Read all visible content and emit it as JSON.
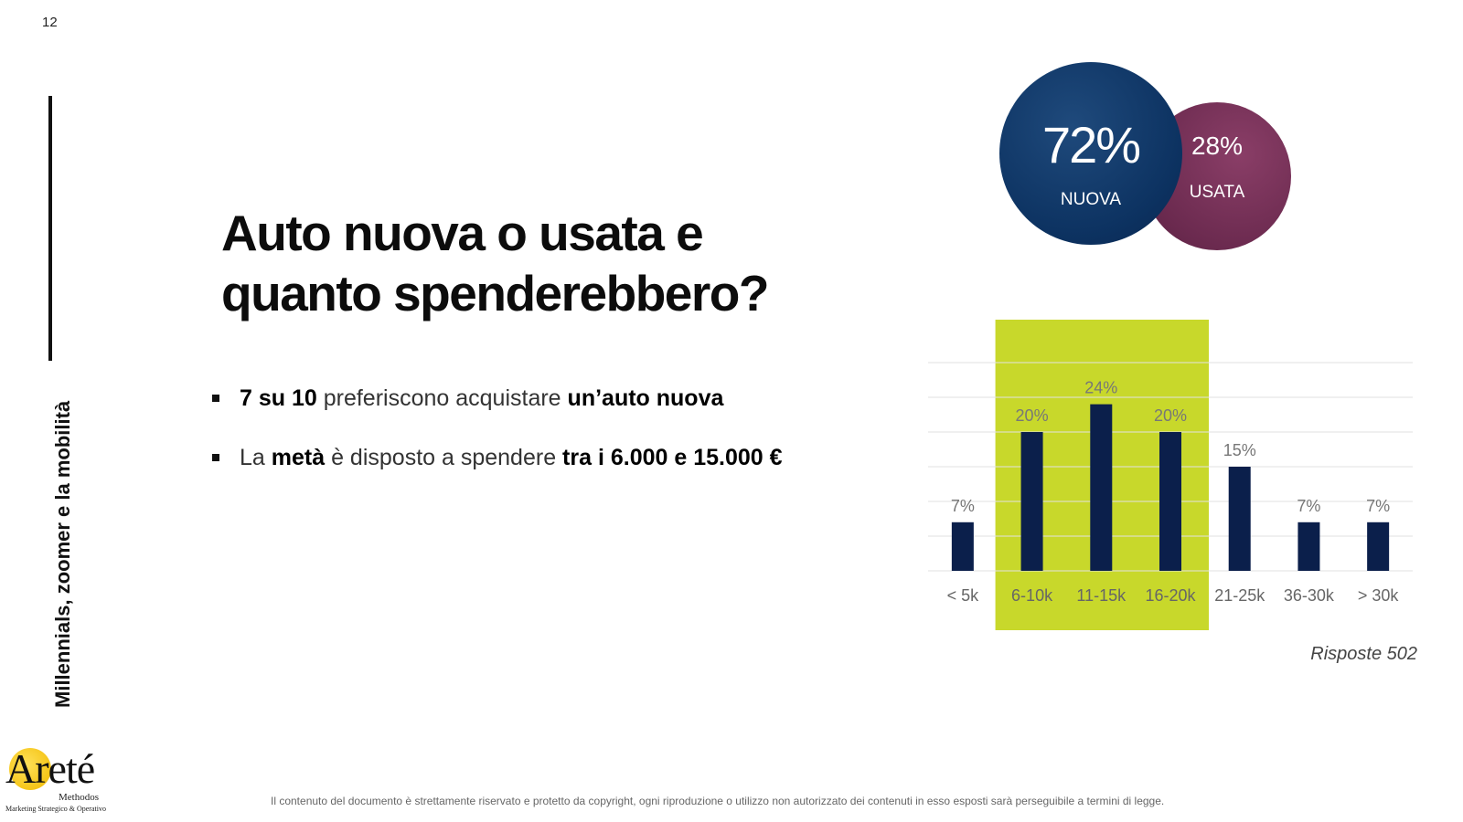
{
  "page_number": "12",
  "side_title": "Millennials, zoomer e la mobilità",
  "title": {
    "line1": "Auto nuova o usata e",
    "line2": "quanto spenderebbero?"
  },
  "bullets": [
    {
      "parts": [
        {
          "text": "7 su 10",
          "em": true
        },
        {
          "text": " preferiscono acquistare ",
          "em": false
        },
        {
          "text": "un’auto nuova",
          "em": true
        }
      ]
    },
    {
      "parts": [
        {
          "text": "La ",
          "em": false
        },
        {
          "text": "metà",
          "em": true
        },
        {
          "text": " è disposto a spendere ",
          "em": false
        },
        {
          "text": "tra i 6.000 e 15.000 €",
          "em": true
        }
      ]
    }
  ],
  "bubbles": {
    "new": {
      "pct": "72%",
      "label": "NUOVA",
      "color": "#0d3362"
    },
    "used": {
      "pct": "28%",
      "label": "USATA",
      "color": "#6b2a4f"
    }
  },
  "chart_data": {
    "type": "bar",
    "categories": [
      "< 5k",
      "6-10k",
      "11-15k",
      "16-20k",
      "21-25k",
      "36-30k",
      "> 30k"
    ],
    "values": [
      7,
      20,
      24,
      20,
      15,
      7,
      7
    ],
    "value_labels": [
      "7%",
      "20%",
      "24%",
      "20%",
      "15%",
      "7%",
      "7%"
    ],
    "ylim": [
      0,
      30
    ],
    "grid": true,
    "bar_color": "#0b1f4b",
    "highlight": {
      "categories": [
        "6-10k",
        "11-15k",
        "16-20k"
      ],
      "color": "#c8d82b"
    }
  },
  "responses": "Risposte 502",
  "logo": {
    "word": "Areté",
    "sub1": "Methodos",
    "sub2": "Marketing Strategico & Operativo"
  },
  "disclaimer": "Il contenuto del documento è strettamente riservato e protetto da copyright, ogni riproduzione o utilizzo non autorizzato dei contenuti in esso esposti sarà perseguibile a termini di legge."
}
